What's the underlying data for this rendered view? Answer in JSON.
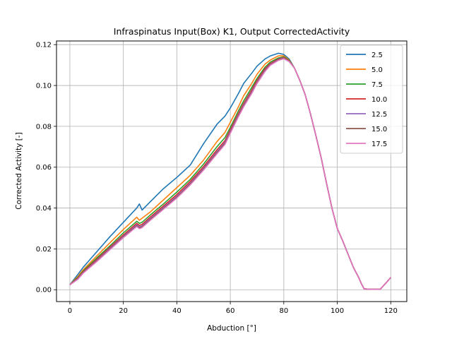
{
  "chart_data": {
    "type": "line",
    "title": "Infraspinatus Input(Box) K1, Output CorrectedActivity",
    "xlabel": "Abduction [°]",
    "ylabel": "Corrected Activity [-]",
    "xlim": [
      -5,
      126
    ],
    "ylim": [
      -0.0058,
      0.1218
    ],
    "xticks": [
      0,
      20,
      40,
      60,
      80,
      100,
      120
    ],
    "yticks": [
      0.0,
      0.02,
      0.04,
      0.06,
      0.08,
      0.1,
      0.12
    ],
    "xtick_labels": [
      "0",
      "20",
      "40",
      "60",
      "80",
      "100",
      "120"
    ],
    "ytick_labels": [
      "0.00",
      "0.02",
      "0.04",
      "0.06",
      "0.08",
      "0.10",
      "0.12"
    ],
    "grid": true,
    "legend_position": "upper right",
    "x": [
      0,
      3,
      5,
      10,
      15,
      20,
      25,
      26,
      27,
      30,
      35,
      40,
      45,
      50,
      55,
      58,
      60,
      63,
      65,
      68,
      70,
      73,
      75,
      78,
      80,
      82,
      84,
      86,
      88,
      90,
      92,
      94,
      96,
      98,
      100,
      102,
      104,
      106,
      108,
      109,
      110,
      112,
      114,
      116,
      118,
      120
    ],
    "series": [
      {
        "name": "2.5",
        "color": "#1f77b4",
        "values": [
          0.0024,
          0.0075,
          0.011,
          0.0185,
          0.026,
          0.033,
          0.04,
          0.042,
          0.039,
          0.043,
          0.0495,
          0.055,
          0.061,
          0.0715,
          0.081,
          0.085,
          0.089,
          0.096,
          0.101,
          0.106,
          0.1095,
          0.113,
          0.1145,
          0.1158,
          0.1152,
          0.113,
          0.1085,
          0.1025,
          0.0955,
          0.086,
          0.0755,
          0.0645,
          0.052,
          0.04,
          0.03,
          0.024,
          0.0175,
          0.011,
          0.006,
          0.003,
          0.0005,
          0.0002,
          0.0002,
          0.0002,
          0.003,
          0.006
        ]
      },
      {
        "name": "5.0",
        "color": "#ff7f0e",
        "values": [
          0.0024,
          0.0065,
          0.0098,
          0.0165,
          0.023,
          0.0295,
          0.0355,
          0.034,
          0.035,
          0.038,
          0.044,
          0.05,
          0.056,
          0.0635,
          0.0725,
          0.077,
          0.082,
          0.0895,
          0.095,
          0.101,
          0.1055,
          0.1105,
          0.1125,
          0.1145,
          0.1145,
          0.1125,
          0.1085,
          0.1025,
          0.0955,
          0.086,
          0.0755,
          0.0645,
          0.052,
          0.04,
          0.03,
          0.024,
          0.0175,
          0.011,
          0.006,
          0.003,
          0.0005,
          0.0002,
          0.0002,
          0.0002,
          0.003,
          0.006
        ]
      },
      {
        "name": "7.5",
        "color": "#2ca02c",
        "values": [
          0.0024,
          0.006,
          0.0092,
          0.0155,
          0.0215,
          0.0278,
          0.0335,
          0.0325,
          0.033,
          0.0365,
          0.042,
          0.0478,
          0.054,
          0.0615,
          0.07,
          0.0745,
          0.0795,
          0.0875,
          0.0925,
          0.099,
          0.1035,
          0.109,
          0.1115,
          0.1135,
          0.114,
          0.1122,
          0.1085,
          0.1025,
          0.0955,
          0.086,
          0.0755,
          0.0645,
          0.052,
          0.04,
          0.03,
          0.024,
          0.0175,
          0.011,
          0.006,
          0.003,
          0.0005,
          0.0002,
          0.0002,
          0.0002,
          0.003,
          0.006
        ]
      },
      {
        "name": "10.0",
        "color": "#d62728",
        "values": [
          0.0024,
          0.0057,
          0.0088,
          0.0148,
          0.0208,
          0.0268,
          0.0325,
          0.0315,
          0.032,
          0.0355,
          0.041,
          0.0466,
          0.053,
          0.0603,
          0.0685,
          0.073,
          0.0783,
          0.0862,
          0.0912,
          0.0978,
          0.1025,
          0.1082,
          0.1108,
          0.113,
          0.1137,
          0.112,
          0.1085,
          0.1025,
          0.0955,
          0.086,
          0.0755,
          0.0645,
          0.052,
          0.04,
          0.03,
          0.024,
          0.0175,
          0.011,
          0.006,
          0.003,
          0.0005,
          0.0002,
          0.0002,
          0.0002,
          0.003,
          0.006
        ]
      },
      {
        "name": "12.5",
        "color": "#9467bd",
        "values": [
          0.0024,
          0.0055,
          0.0085,
          0.0143,
          0.0203,
          0.0262,
          0.0318,
          0.0308,
          0.0313,
          0.0348,
          0.0403,
          0.0458,
          0.0522,
          0.0595,
          0.0676,
          0.0722,
          0.0775,
          0.0855,
          0.0905,
          0.097,
          0.1018,
          0.1076,
          0.1104,
          0.1127,
          0.1135,
          0.1119,
          0.1085,
          0.1025,
          0.0955,
          0.086,
          0.0755,
          0.0645,
          0.052,
          0.04,
          0.03,
          0.024,
          0.0175,
          0.011,
          0.006,
          0.003,
          0.0005,
          0.0002,
          0.0002,
          0.0002,
          0.003,
          0.006
        ]
      },
      {
        "name": "15.0",
        "color": "#8c564b",
        "values": [
          0.0024,
          0.0053,
          0.0083,
          0.014,
          0.0199,
          0.0258,
          0.0313,
          0.0303,
          0.0308,
          0.0343,
          0.0398,
          0.0453,
          0.0517,
          0.059,
          0.067,
          0.0716,
          0.077,
          0.085,
          0.09,
          0.0965,
          0.1013,
          0.1072,
          0.1101,
          0.1125,
          0.1133,
          0.1118,
          0.1085,
          0.1025,
          0.0955,
          0.086,
          0.0755,
          0.0645,
          0.052,
          0.04,
          0.03,
          0.024,
          0.0175,
          0.011,
          0.006,
          0.003,
          0.0005,
          0.0002,
          0.0002,
          0.0002,
          0.003,
          0.006
        ]
      },
      {
        "name": "17.5",
        "color": "#e377c2",
        "values": [
          0.0024,
          0.0051,
          0.0081,
          0.0137,
          0.0196,
          0.0255,
          0.0309,
          0.0299,
          0.0304,
          0.0339,
          0.0394,
          0.0449,
          0.0513,
          0.0586,
          0.0665,
          0.0711,
          0.0766,
          0.0846,
          0.0896,
          0.0961,
          0.101,
          0.1069,
          0.1099,
          0.1123,
          0.1131,
          0.1117,
          0.1085,
          0.1025,
          0.0955,
          0.086,
          0.0755,
          0.0645,
          0.052,
          0.04,
          0.03,
          0.024,
          0.0175,
          0.011,
          0.006,
          0.003,
          0.0005,
          0.0002,
          0.0002,
          0.0002,
          0.003,
          0.006
        ]
      }
    ]
  }
}
